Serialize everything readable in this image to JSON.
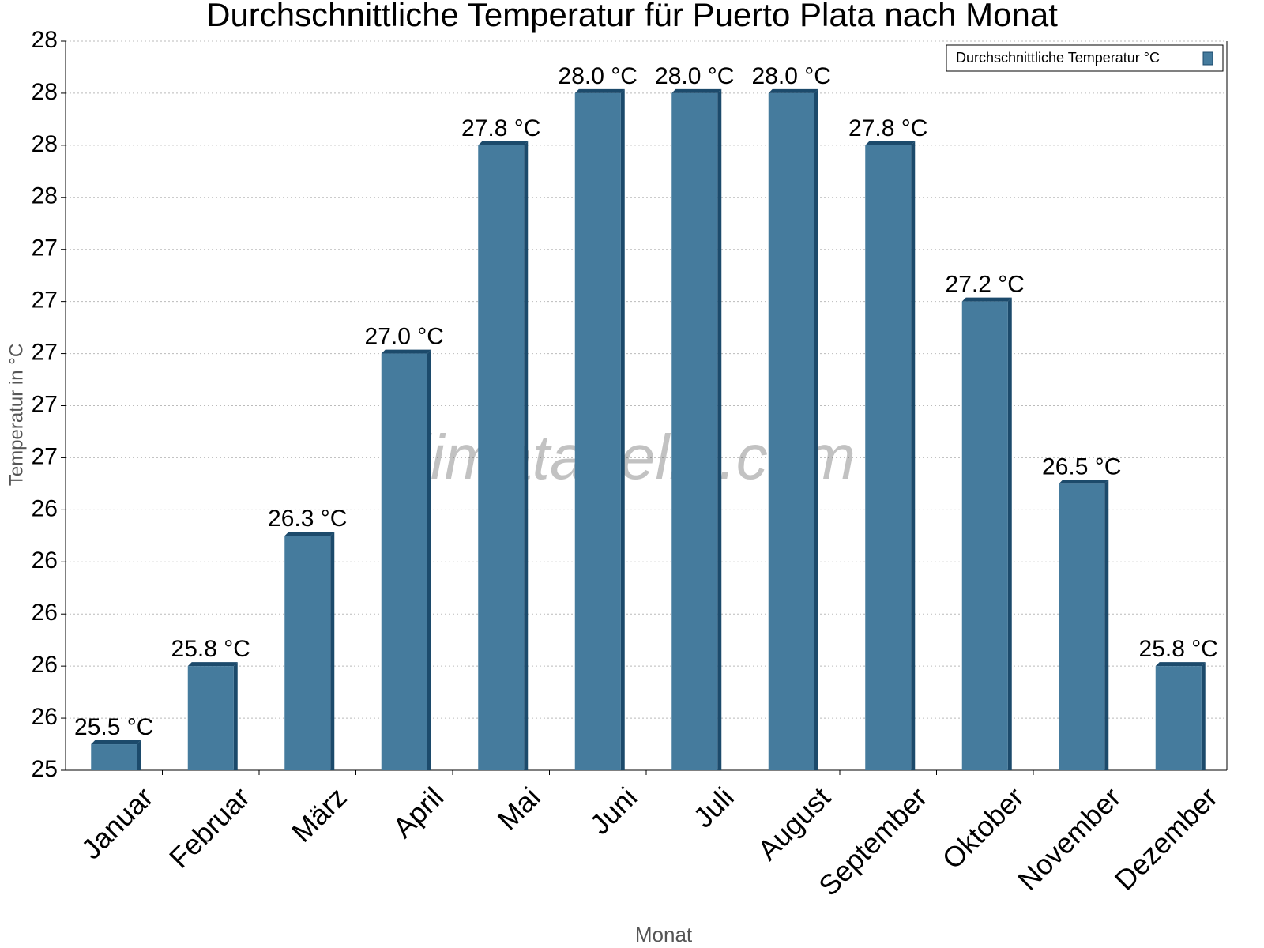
{
  "chart_data": {
    "type": "bar",
    "title": "Durchschnittliche Temperatur für Puerto Plata nach Monat",
    "x_label": "Monat",
    "y_label": "Temperatur in °C",
    "watermark": "klimatabelle.com",
    "categories": [
      "Januar",
      "Februar",
      "März",
      "April",
      "Mai",
      "Juni",
      "Juli",
      "August",
      "September",
      "Oktober",
      "November",
      "Dezember"
    ],
    "series": [
      {
        "name": "Durchschnittliche Temperatur °C",
        "color": "#457b9d",
        "values": [
          25.5,
          25.8,
          26.3,
          27.0,
          27.8,
          28.0,
          28.0,
          28.0,
          27.8,
          27.2,
          26.5,
          25.8
        ],
        "value_labels": [
          "25.5 °C",
          "25.8 °C",
          "26.3 °C",
          "27.0 °C",
          "27.8 °C",
          "28.0 °C",
          "28.0 °C",
          "28.0 °C",
          "27.8 °C",
          "27.2 °C",
          "26.5 °C",
          "25.8 °C"
        ]
      }
    ],
    "ylim": [
      25.4,
      28.2
    ],
    "yticks": [
      {
        "value": 25.4,
        "label": "25"
      },
      {
        "value": 25.6,
        "label": "26"
      },
      {
        "value": 25.8,
        "label": "26"
      },
      {
        "value": 26.0,
        "label": "26"
      },
      {
        "value": 26.2,
        "label": "26"
      },
      {
        "value": 26.4,
        "label": "26"
      },
      {
        "value": 26.6,
        "label": "27"
      },
      {
        "value": 26.8,
        "label": "27"
      },
      {
        "value": 27.0,
        "label": "27"
      },
      {
        "value": 27.2,
        "label": "27"
      },
      {
        "value": 27.4,
        "label": "27"
      },
      {
        "value": 27.6,
        "label": "28"
      },
      {
        "value": 27.8,
        "label": "28"
      },
      {
        "value": 28.0,
        "label": "28"
      },
      {
        "value": 28.2,
        "label": "28"
      }
    ],
    "grid": true,
    "legend": "top-right"
  }
}
